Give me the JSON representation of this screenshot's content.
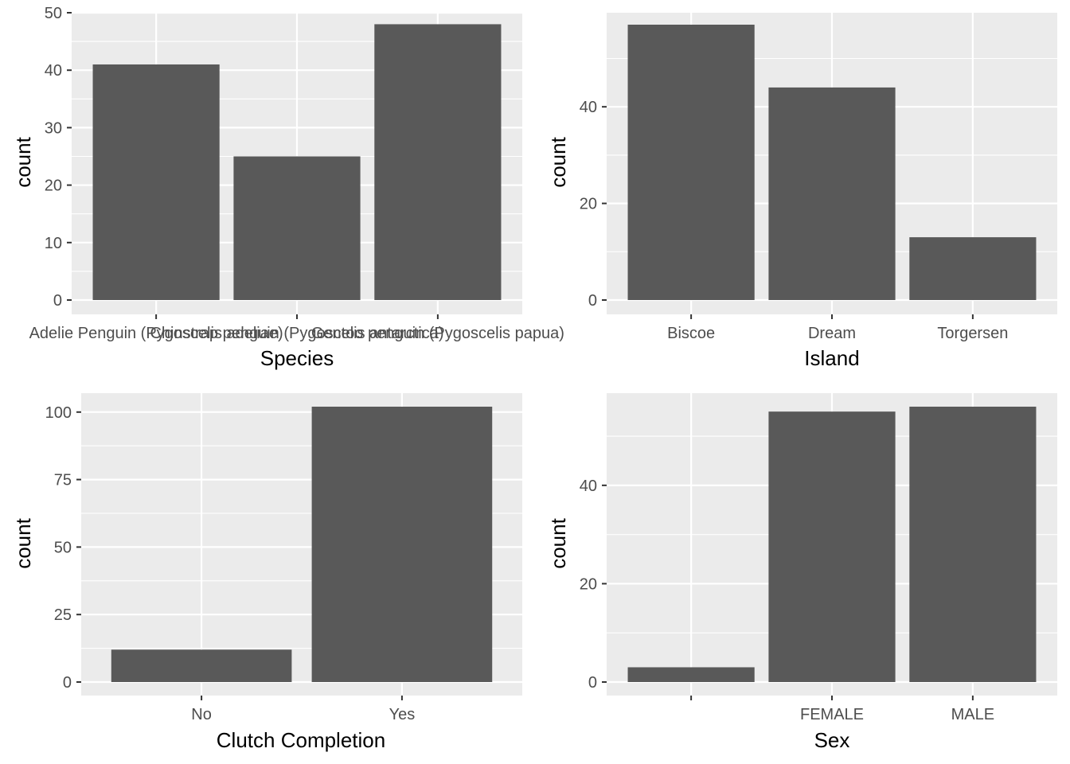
{
  "chart_data": [
    {
      "type": "bar",
      "xlabel": "Species",
      "ylabel": "count",
      "categories": [
        "Adelie Penguin (Pygoscelis adeliae)",
        "Chinstrap penguin (Pygoscelis antarctica)",
        "Gentoo penguin (Pygoscelis papua)"
      ],
      "values": [
        41,
        25,
        48
      ],
      "ylim": [
        0,
        50
      ],
      "yticks": [
        0,
        10,
        20,
        30,
        40,
        50
      ]
    },
    {
      "type": "bar",
      "xlabel": "Island",
      "ylabel": "count",
      "categories": [
        "Biscoe",
        "Dream",
        "Torgersen"
      ],
      "values": [
        57,
        44,
        13
      ],
      "ylim": [
        0,
        57
      ],
      "yticks": [
        0,
        20,
        40
      ]
    },
    {
      "type": "bar",
      "xlabel": "Clutch Completion",
      "ylabel": "count",
      "categories": [
        "No",
        "Yes"
      ],
      "values": [
        12,
        102
      ],
      "ylim": [
        0,
        102
      ],
      "yticks": [
        0,
        25,
        50,
        75,
        100
      ]
    },
    {
      "type": "bar",
      "xlabel": "Sex",
      "ylabel": "count",
      "categories": [
        "",
        "FEMALE",
        "MALE"
      ],
      "values": [
        3,
        55,
        56
      ],
      "ylim": [
        0,
        56
      ],
      "yticks": [
        0,
        20,
        40
      ]
    }
  ],
  "colors": {
    "panel_background": "#ebebeb",
    "grid": "#ffffff",
    "bar_fill": "#595959",
    "tick_text": "#4d4d4d",
    "tick_mark": "#333333",
    "axis_title": "#000000"
  }
}
